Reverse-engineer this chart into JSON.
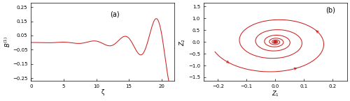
{
  "fig_width": 5.0,
  "fig_height": 1.45,
  "dpi": 100,
  "line_color": "#cc2222",
  "line_width": 0.75,
  "panel_a": {
    "xlabel": "ζ",
    "xlim": [
      0,
      22
    ],
    "ylim": [
      -0.27,
      0.28
    ],
    "xticks": [
      0,
      5,
      10,
      15,
      20
    ],
    "yticks": [
      -0.25,
      -0.15,
      -0.05,
      0.05,
      0.15,
      0.25
    ],
    "label": "(a)",
    "A0": 0.0008,
    "growth": 0.28,
    "omega": 1.32,
    "phi": 1.5707963
  },
  "panel_b": {
    "xlabel": "Z₁",
    "ylabel": "Z₂",
    "xlim": [
      -0.25,
      0.25
    ],
    "ylim": [
      -1.65,
      1.65
    ],
    "xticks": [
      -0.2,
      -0.1,
      0.0,
      0.1,
      0.2
    ],
    "yticks": [
      -1.5,
      -1.0,
      -0.5,
      0.0,
      0.5,
      1.0,
      1.5
    ],
    "label": "(b)",
    "r0_x": 0.22,
    "r0_y": 1.42,
    "n_turns": 9,
    "decay": 0.095,
    "arrow_indices": [
      80,
      350,
      700
    ]
  },
  "background_color": "#ffffff",
  "tick_labelsize": 5,
  "axis_labelsize": 6,
  "annotation_fontsize": 7
}
